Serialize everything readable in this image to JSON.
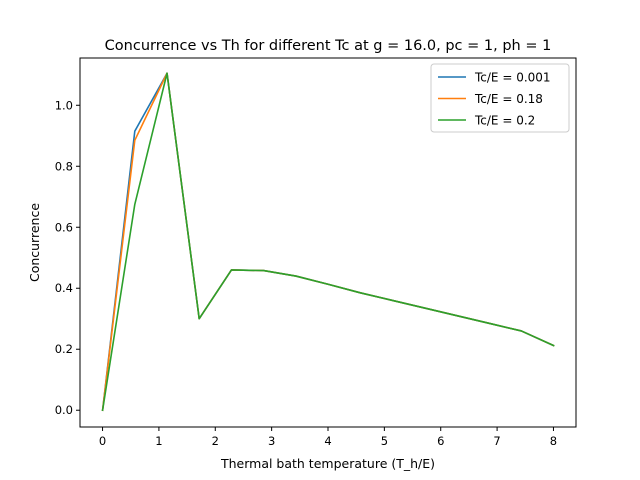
{
  "chart_data": {
    "type": "line",
    "title": "Concurrence vs Th for different Tc at g = 16.0, pc = 1, ph = 1",
    "xlabel": "Thermal bath temperature (T_h/E)",
    "ylabel": "Concurrence",
    "xlim": [
      -0.4,
      8.4
    ],
    "ylim": [
      -0.055,
      1.155
    ],
    "xticks": [
      0,
      1,
      2,
      3,
      4,
      5,
      6,
      7,
      8
    ],
    "xtick_labels": [
      "0",
      "1",
      "2",
      "3",
      "4",
      "5",
      "6",
      "7",
      "8"
    ],
    "yticks": [
      0.0,
      0.2,
      0.4,
      0.6,
      0.8,
      1.0
    ],
    "ytick_labels": [
      "0.0",
      "0.2",
      "0.4",
      "0.6",
      "0.8",
      "1.0"
    ],
    "grid": false,
    "legend_position": "top-right",
    "series": [
      {
        "name": "Tc/E = 0.001",
        "color": "#1f77b4",
        "x": [
          0.001,
          0.572,
          1.144,
          1.715,
          2.287,
          2.858,
          3.43,
          4.001,
          4.573,
          5.144,
          5.716,
          6.287,
          6.859,
          7.43,
          8.002
        ],
        "y": [
          0.0,
          0.915,
          1.105,
          0.3,
          0.46,
          0.458,
          0.44,
          0.413,
          0.385,
          0.36,
          0.335,
          0.31,
          0.285,
          0.26,
          0.212
        ]
      },
      {
        "name": "Tc/E = 0.18",
        "color": "#ff7f0e",
        "x": [
          0.001,
          0.572,
          1.144,
          1.715,
          2.287,
          2.858,
          3.43,
          4.001,
          4.573,
          5.144,
          5.716,
          6.287,
          6.859,
          7.43,
          8.002
        ],
        "y": [
          0.0,
          0.885,
          1.105,
          0.3,
          0.46,
          0.458,
          0.44,
          0.413,
          0.385,
          0.36,
          0.335,
          0.31,
          0.285,
          0.26,
          0.212
        ]
      },
      {
        "name": "Tc/E = 0.2",
        "color": "#2ca02c",
        "x": [
          0.001,
          0.572,
          1.144,
          1.715,
          2.287,
          2.858,
          3.43,
          4.001,
          4.573,
          5.144,
          5.716,
          6.287,
          6.859,
          7.43,
          8.002
        ],
        "y": [
          0.0,
          0.675,
          1.105,
          0.3,
          0.46,
          0.458,
          0.44,
          0.413,
          0.385,
          0.36,
          0.335,
          0.31,
          0.285,
          0.26,
          0.212
        ]
      }
    ]
  }
}
